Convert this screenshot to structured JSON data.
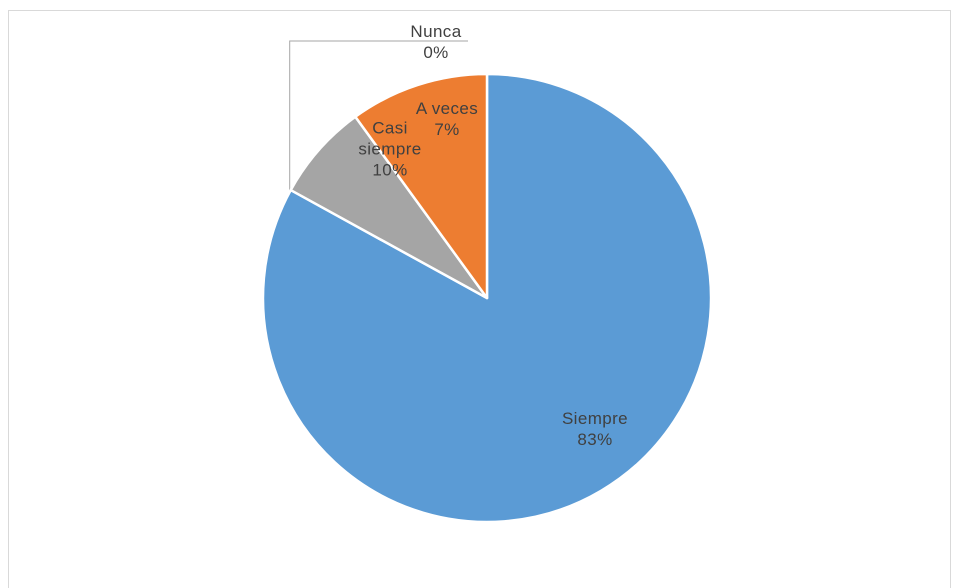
{
  "chart_data": {
    "type": "pie",
    "title": "",
    "slices": [
      {
        "label": "Siempre",
        "value": 83,
        "value_label": "83%",
        "color": "#5b9bd5"
      },
      {
        "label": "Nunca",
        "value": 0,
        "value_label": "0%",
        "color": "#ffc000"
      },
      {
        "label": "A veces",
        "value": 7,
        "value_label": "7%",
        "color": "#a5a5a5"
      },
      {
        "label": "Casi siempre",
        "value": 10,
        "value_label": "10%",
        "color": "#ed7d31"
      }
    ],
    "start": "12 o'clock",
    "direction": "clockwise",
    "legend": "none"
  }
}
